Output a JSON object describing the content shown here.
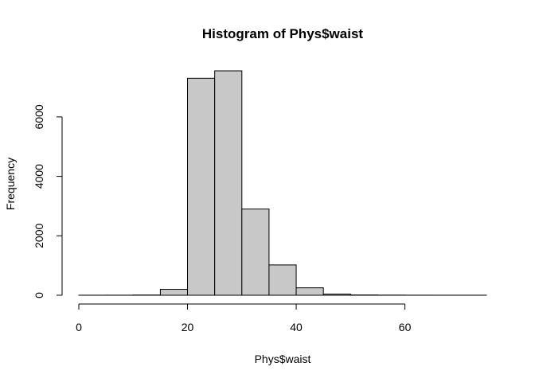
{
  "chart_data": {
    "type": "bar",
    "title": "Histogram of Phys$waist",
    "xlabel": "Phys$waist",
    "ylabel": "Frequency",
    "bin_width": 5,
    "bins": [
      {
        "start": 0,
        "end": 5,
        "count": 2
      },
      {
        "start": 5,
        "end": 10,
        "count": 3
      },
      {
        "start": 10,
        "end": 15,
        "count": 8
      },
      {
        "start": 15,
        "end": 20,
        "count": 200
      },
      {
        "start": 20,
        "end": 25,
        "count": 7300
      },
      {
        "start": 25,
        "end": 30,
        "count": 7550
      },
      {
        "start": 30,
        "end": 35,
        "count": 2900
      },
      {
        "start": 35,
        "end": 40,
        "count": 1020
      },
      {
        "start": 40,
        "end": 45,
        "count": 250
      },
      {
        "start": 45,
        "end": 50,
        "count": 40
      },
      {
        "start": 50,
        "end": 55,
        "count": 10
      },
      {
        "start": 55,
        "end": 60,
        "count": 5
      },
      {
        "start": 60,
        "end": 65,
        "count": 3
      },
      {
        "start": 65,
        "end": 70,
        "count": 2
      },
      {
        "start": 70,
        "end": 75,
        "count": 2
      }
    ],
    "xticks": [
      0,
      20,
      40,
      60
    ],
    "yticks": [
      0,
      2000,
      4000,
      6000
    ],
    "xlim": [
      0,
      75
    ],
    "ylim": [
      0,
      7550
    ],
    "grid": false,
    "colors": {
      "bar_fill": "#c8c8c8",
      "bar_stroke": "#000000"
    }
  }
}
